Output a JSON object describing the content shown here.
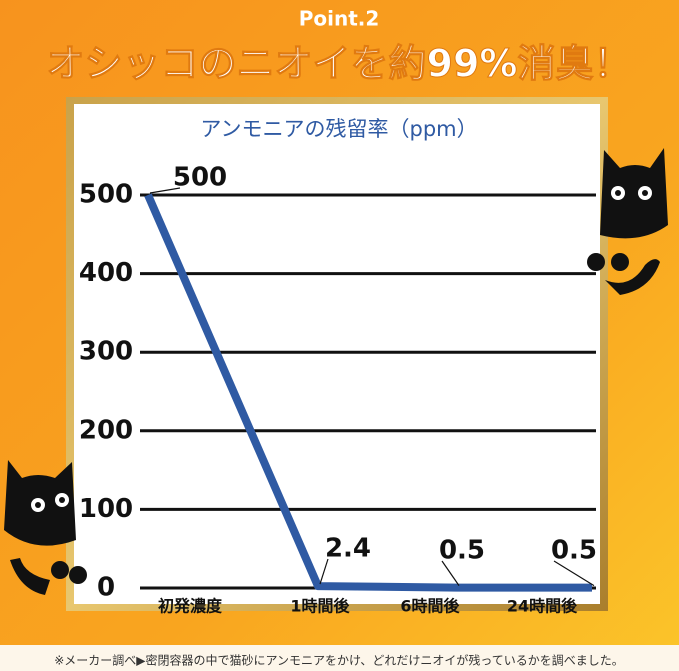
{
  "header": {
    "point": "Point.2",
    "headline": "オシッコのニオイを約99%消臭！"
  },
  "chart_data": {
    "type": "line",
    "title": "アンモニアの残留率（ppm）",
    "categories": [
      "初発濃度",
      "1時間後",
      "6時間後",
      "24時間後"
    ],
    "values": [
      500,
      2.4,
      0.5,
      0.5
    ],
    "color": "#2f5aa3",
    "ylim": [
      0,
      500
    ],
    "yticks": [
      0,
      100,
      200,
      300,
      400,
      500
    ],
    "grid": true
  },
  "footnote": "※メーカー調べ▶密閉容器の中で猫砂にアンモニアをかけ、どれだけニオイが残っているかを調べました。"
}
